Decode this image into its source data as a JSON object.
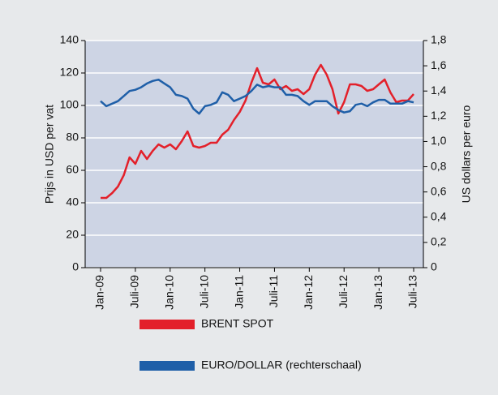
{
  "chart_data": {
    "type": "line",
    "y_label": "Prijs in USD per vat",
    "y2_label": "US dollars per euro",
    "categories": [
      "Jan-09",
      null,
      null,
      null,
      null,
      null,
      "Juli-09",
      null,
      null,
      null,
      null,
      null,
      "Jan-10",
      null,
      null,
      null,
      null,
      null,
      "Juli-10",
      null,
      null,
      null,
      null,
      null,
      "Jan-11",
      null,
      null,
      null,
      null,
      null,
      "Juli-11",
      null,
      null,
      null,
      null,
      null,
      "Jan-12",
      null,
      null,
      null,
      null,
      null,
      "Juli-12",
      null,
      null,
      null,
      null,
      null,
      "Jan-13",
      null,
      null,
      null,
      null,
      null,
      "Juli-13"
    ],
    "series": [
      {
        "name": "BRENT SPOT",
        "color": "#e3202a",
        "values": [
          43,
          43,
          46,
          50,
          57,
          68,
          64,
          72,
          67,
          72,
          76,
          74,
          76,
          73,
          78,
          84,
          75,
          74,
          75,
          77,
          77,
          82,
          85,
          91,
          96,
          103,
          114,
          123,
          114,
          113,
          116,
          110,
          112,
          109,
          110,
          107,
          110,
          119,
          125,
          119,
          110,
          95,
          102,
          113,
          113,
          112,
          109,
          110,
          113,
          116,
          108,
          102,
          103,
          103,
          107
        ]
      },
      {
        "name": "EURO/DOLLAR (rechterschaal)",
        "color": "#1f5fa8",
        "axis": "y2",
        "values": [
          1.32,
          1.28,
          1.3,
          1.32,
          1.36,
          1.4,
          1.41,
          1.43,
          1.46,
          1.48,
          1.49,
          1.46,
          1.43,
          1.37,
          1.36,
          1.34,
          1.26,
          1.22,
          1.28,
          1.29,
          1.31,
          1.39,
          1.37,
          1.32,
          1.34,
          1.36,
          1.4,
          1.45,
          1.43,
          1.44,
          1.43,
          1.43,
          1.37,
          1.37,
          1.36,
          1.32,
          1.29,
          1.32,
          1.32,
          1.32,
          1.28,
          1.25,
          1.23,
          1.24,
          1.29,
          1.3,
          1.28,
          1.31,
          1.33,
          1.33,
          1.3,
          1.3,
          1.3,
          1.32,
          1.31
        ]
      }
    ],
    "ylim": [
      0,
      140
    ],
    "yticks": [
      0,
      20,
      40,
      60,
      80,
      100,
      120,
      140
    ],
    "y2lim": [
      0,
      1.8
    ],
    "y2ticks": [
      0,
      {
        "value": 0.2,
        "label": "0,2"
      },
      {
        "value": 0.4,
        "label": "0,4"
      },
      {
        "value": 0.6,
        "label": "0,6"
      },
      {
        "value": 0.8,
        "label": "0,8"
      },
      {
        "value": 1.0,
        "label": "1,0"
      },
      {
        "value": 1.2,
        "label": "1,2"
      },
      {
        "value": 1.4,
        "label": "1,4"
      },
      {
        "value": 1.6,
        "label": "1,6"
      },
      {
        "value": 1.8,
        "label": "1,8"
      }
    ],
    "grid": true,
    "legend": "bottom"
  }
}
